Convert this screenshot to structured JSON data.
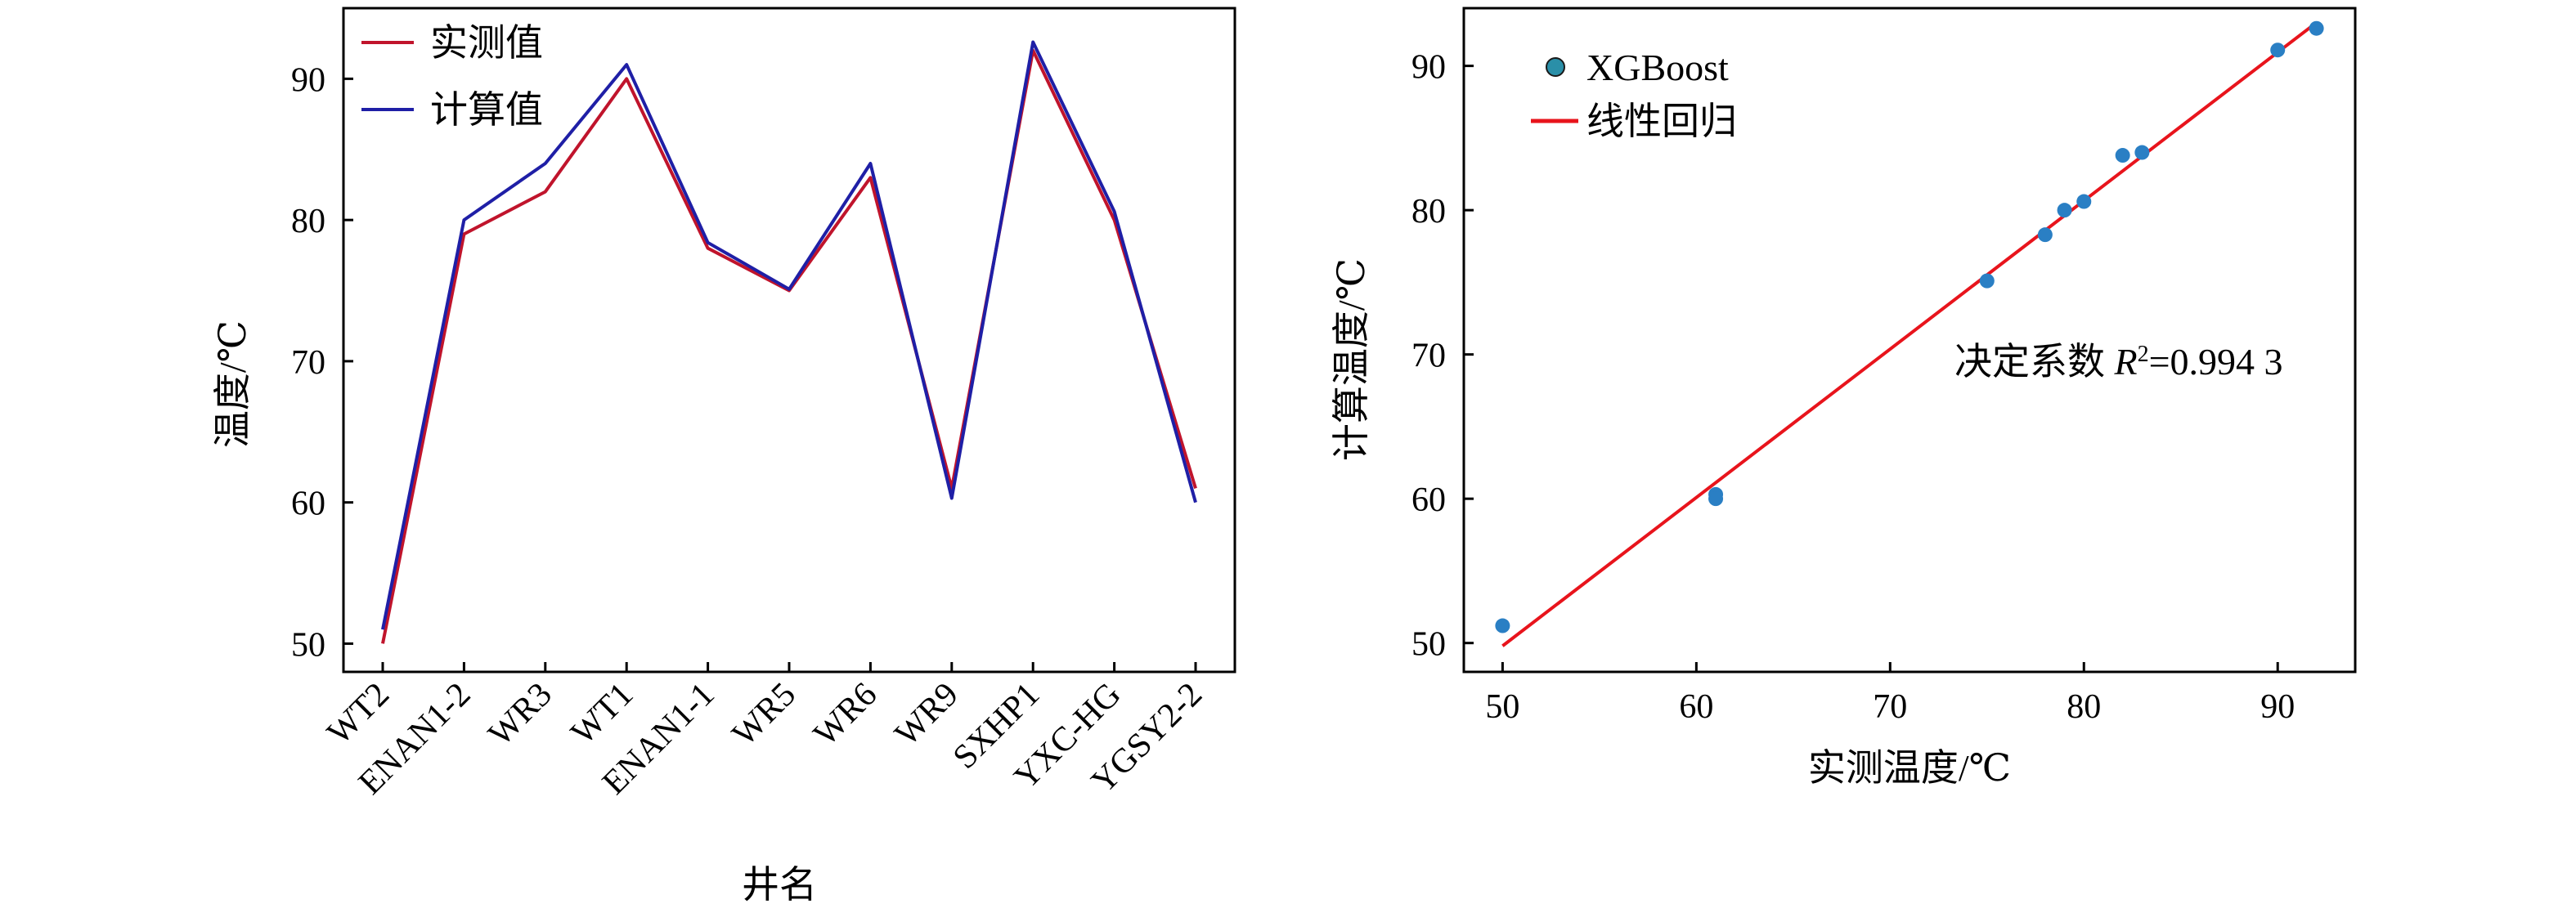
{
  "chart_data": [
    {
      "type": "line",
      "title": "",
      "xlabel": "井名",
      "ylabel": "温度/℃",
      "categories": [
        "WT2",
        "ENAN1-2",
        "WR3",
        "WT1",
        "ENAN1-1",
        "WR5",
        "WR6",
        "WR9",
        "SXHP1",
        "YXC-HG",
        "YGSY2-2"
      ],
      "ylim": [
        48,
        95
      ],
      "yticks": [
        50,
        60,
        70,
        80,
        90
      ],
      "grid": false,
      "legend_position": "top-left",
      "series": [
        {
          "name": "实测值",
          "color": "#c0142c",
          "values": [
            50,
            79,
            82,
            90,
            78,
            75,
            83,
            61,
            92,
            80,
            61
          ]
        },
        {
          "name": "计算值",
          "color": "#1f1fa6",
          "values": [
            51,
            80,
            84,
            91,
            78.4,
            75.1,
            84,
            60.3,
            92.6,
            80.6,
            60
          ]
        }
      ]
    },
    {
      "type": "scatter",
      "title": "",
      "xlabel": "实测温度/℃",
      "ylabel": "计算温度/℃",
      "xlim": [
        48,
        94
      ],
      "ylim": [
        48,
        94
      ],
      "xticks": [
        50,
        60,
        70,
        80,
        90
      ],
      "yticks": [
        50,
        60,
        70,
        80,
        90
      ],
      "grid": false,
      "legend_position": "top-left",
      "annotation": {
        "prefix": "决定系数 ",
        "symbol": "R",
        "superscript": "2",
        "value_text": "=0.994 3"
      },
      "series": [
        {
          "name": "XGBoost",
          "color": "#2a7fc4",
          "points": [
            [
              50,
              51.2
            ],
            [
              61,
              60.3
            ],
            [
              61,
              60
            ],
            [
              75,
              75.1
            ],
            [
              78,
              78.3
            ],
            [
              79,
              80
            ],
            [
              80,
              80.6
            ],
            [
              82,
              83.8
            ],
            [
              83,
              84
            ],
            [
              90,
              91.1
            ],
            [
              92,
              92.6
            ]
          ]
        },
        {
          "name": "线性回归",
          "type": "line",
          "color": "#e8141c",
          "points": [
            [
              50,
              49.8
            ],
            [
              92,
              93
            ]
          ]
        }
      ]
    }
  ]
}
